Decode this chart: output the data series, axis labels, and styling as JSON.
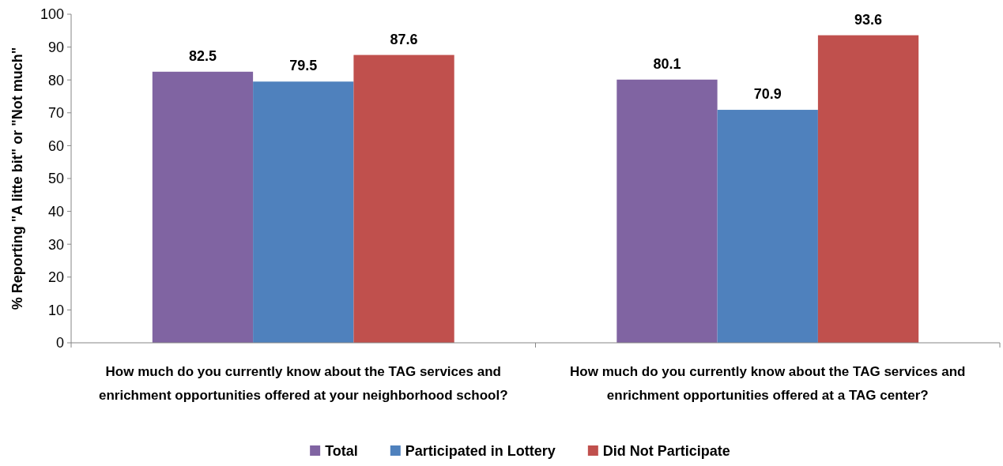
{
  "chart_data": {
    "type": "bar",
    "ylabel": "% Reporting \"A litte bit\" or \"Not much\"",
    "categories": [
      "How much do you currently know about the TAG services and enrichment opportunities offered at your neighborhood school?",
      "How much do you currently know about the TAG services and enrichment opportunities offered at a TAG center?"
    ],
    "series": [
      {
        "name": "Total",
        "color": "#8064a2",
        "values": [
          82.5,
          80.1
        ]
      },
      {
        "name": "Participated in Lottery",
        "color": "#4f81bd",
        "values": [
          79.5,
          70.9
        ]
      },
      {
        "name": "Did Not Participate",
        "color": "#c0504d",
        "values": [
          87.6,
          93.6
        ]
      }
    ],
    "ylim": [
      0,
      100
    ],
    "yticks": [
      0,
      10,
      20,
      30,
      40,
      50,
      60,
      70,
      80,
      90,
      100
    ],
    "data_labels": true,
    "legend": "bottom",
    "grid": false
  }
}
